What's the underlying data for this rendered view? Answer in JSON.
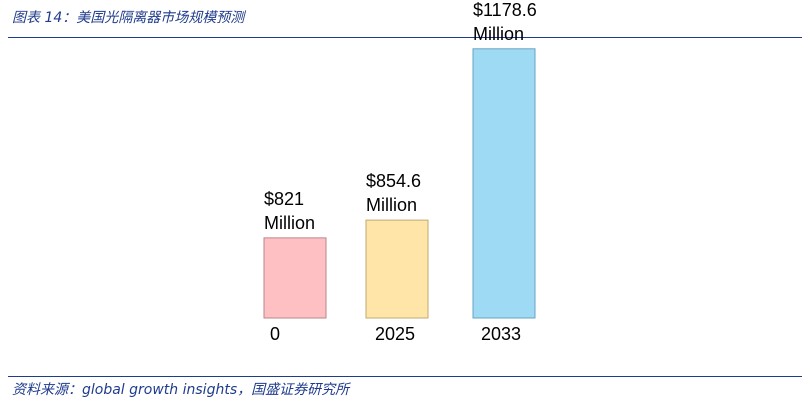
{
  "figure": {
    "title": "图表 14：美国光隔离器市场规模预测",
    "source": "资料来源：global growth insights，国盛证券研究所"
  },
  "chart_data": {
    "type": "bar",
    "categories": [
      "0",
      "2025",
      "2033"
    ],
    "values": [
      821,
      854.6,
      1178.6
    ],
    "data_labels": [
      [
        "$821",
        "Million"
      ],
      [
        "$854.6",
        "Million"
      ],
      [
        "$1178.6",
        "Million"
      ]
    ],
    "colors": [
      "#ffc0c4",
      "#ffe5a8",
      "#9fdaf4"
    ],
    "edge_colors": [
      "#b8868a",
      "#bfaa74",
      "#6aa3bf"
    ],
    "xlabel": "",
    "ylabel": "",
    "grid": false,
    "legend": "none"
  }
}
